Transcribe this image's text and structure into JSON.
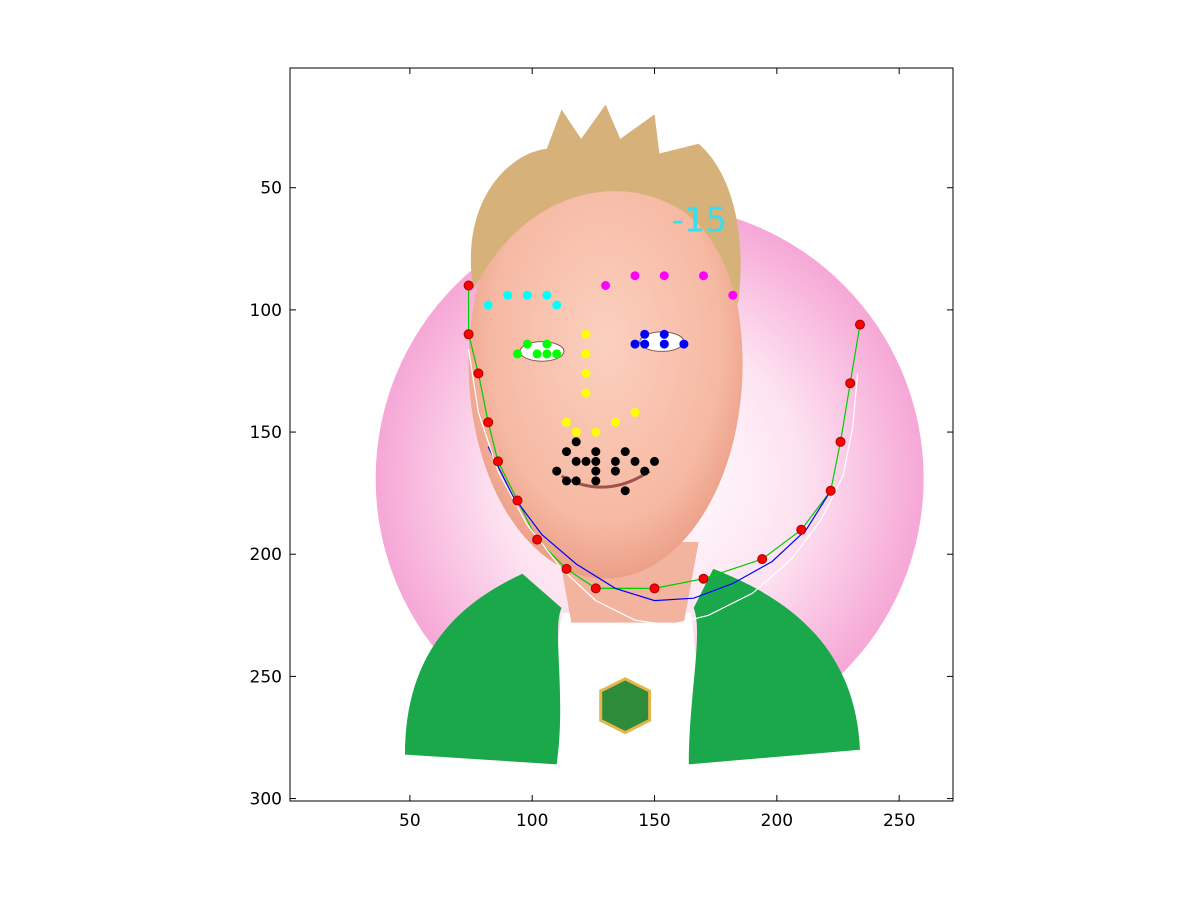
{
  "chart_data": {
    "type": "scatter",
    "title": "",
    "xlabel": "",
    "ylabel": "",
    "xlim": [
      1,
      272
    ],
    "ylim": [
      1,
      301
    ],
    "y_direction": "down",
    "grid": false,
    "legend": "none",
    "x_ticks": [
      50,
      100,
      150,
      200,
      250
    ],
    "y_ticks": [
      50,
      100,
      150,
      200,
      250,
      300
    ],
    "annotation": {
      "text": "-15",
      "x": 157,
      "y": 68,
      "color": "#33e0f2"
    },
    "background_image": {
      "subject": "cartoon-portrait",
      "hair_color": "#d6b27a",
      "skin_color": "#f6b9a3",
      "circle_color": "#f6a7d6",
      "jacket_color": "#1aa84a",
      "shirt_color": "#ffffff"
    },
    "series": [
      {
        "color": "#00ffff",
        "marker": "dot",
        "points": [
          [
            82,
            98
          ],
          [
            90,
            94
          ],
          [
            98,
            94
          ],
          [
            106,
            94
          ],
          [
            110,
            98
          ]
        ]
      },
      {
        "color": "#ff00ff",
        "marker": "dot",
        "points": [
          [
            130,
            90
          ],
          [
            142,
            86
          ],
          [
            154,
            86
          ],
          [
            170,
            86
          ],
          [
            182,
            94
          ]
        ]
      },
      {
        "color": "#00ff00",
        "marker": "dot",
        "points": [
          [
            94,
            118
          ],
          [
            98,
            114
          ],
          [
            102,
            118
          ],
          [
            106,
            114
          ],
          [
            106,
            118
          ],
          [
            110,
            118
          ]
        ]
      },
      {
        "color": "#0000ff",
        "marker": "dot",
        "points": [
          [
            142,
            114
          ],
          [
            146,
            110
          ],
          [
            146,
            114
          ],
          [
            154,
            110
          ],
          [
            154,
            114
          ],
          [
            162,
            114
          ]
        ]
      },
      {
        "color": "#ffff00",
        "marker": "dot",
        "points": [
          [
            122,
            110
          ],
          [
            122,
            118
          ],
          [
            122,
            126
          ],
          [
            122,
            134
          ],
          [
            114,
            146
          ],
          [
            118,
            150
          ],
          [
            126,
            150
          ],
          [
            134,
            146
          ],
          [
            142,
            142
          ]
        ]
      },
      {
        "color": "#000000",
        "marker": "dot",
        "points": [
          [
            118,
            154
          ],
          [
            114,
            158
          ],
          [
            126,
            158
          ],
          [
            138,
            158
          ],
          [
            118,
            162
          ],
          [
            122,
            162
          ],
          [
            126,
            162
          ],
          [
            134,
            162
          ],
          [
            142,
            162
          ],
          [
            150,
            162
          ],
          [
            110,
            166
          ],
          [
            126,
            166
          ],
          [
            134,
            166
          ],
          [
            146,
            166
          ],
          [
            114,
            170
          ],
          [
            118,
            170
          ],
          [
            126,
            170
          ],
          [
            138,
            174
          ]
        ]
      },
      {
        "color": "#ff0000",
        "marker": "dot-outlined",
        "outline": "#aa0000",
        "points": [
          [
            74,
            90
          ],
          [
            74,
            110
          ],
          [
            78,
            126
          ],
          [
            82,
            146
          ],
          [
            86,
            162
          ],
          [
            94,
            178
          ],
          [
            102,
            194
          ],
          [
            114,
            206
          ],
          [
            126,
            214
          ],
          [
            150,
            214
          ],
          [
            170,
            210
          ],
          [
            194,
            202
          ],
          [
            210,
            190
          ],
          [
            222,
            174
          ],
          [
            226,
            154
          ],
          [
            230,
            130
          ],
          [
            234,
            106
          ]
        ]
      }
    ],
    "curves": [
      {
        "color": "#00cc00",
        "points": [
          [
            74,
            90
          ],
          [
            74,
            110
          ],
          [
            78,
            126
          ],
          [
            82,
            146
          ],
          [
            86,
            162
          ],
          [
            94,
            178
          ],
          [
            102,
            194
          ],
          [
            114,
            206
          ],
          [
            126,
            214
          ],
          [
            150,
            214
          ],
          [
            170,
            210
          ],
          [
            194,
            202
          ],
          [
            210,
            190
          ],
          [
            222,
            174
          ],
          [
            226,
            154
          ],
          [
            230,
            130
          ],
          [
            234,
            106
          ]
        ]
      },
      {
        "color": "#0000ff",
        "points": [
          [
            82,
            156
          ],
          [
            92,
            176
          ],
          [
            104,
            192
          ],
          [
            118,
            204
          ],
          [
            134,
            214
          ],
          [
            150,
            219
          ],
          [
            166,
            218
          ],
          [
            182,
            212
          ],
          [
            198,
            203
          ],
          [
            212,
            190
          ],
          [
            222,
            174
          ]
        ]
      },
      {
        "color": "#ffffff",
        "points": [
          [
            74,
            116
          ],
          [
            78,
            142
          ],
          [
            86,
            166
          ],
          [
            98,
            188
          ],
          [
            112,
            206
          ],
          [
            126,
            219
          ],
          [
            142,
            227
          ],
          [
            156,
            229
          ],
          [
            172,
            225
          ],
          [
            190,
            216
          ],
          [
            206,
            202
          ],
          [
            218,
            186
          ],
          [
            227,
            168
          ],
          [
            231,
            148
          ],
          [
            233,
            126
          ]
        ]
      }
    ]
  }
}
